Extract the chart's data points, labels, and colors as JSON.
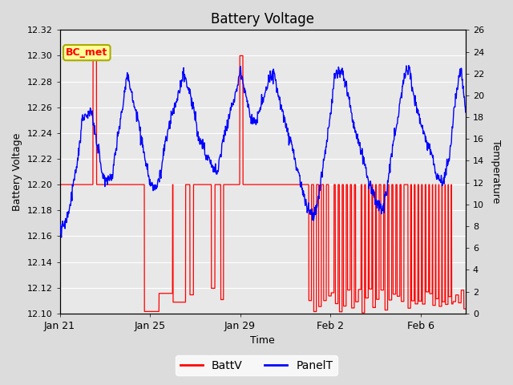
{
  "title": "Battery Voltage",
  "xlabel": "Time",
  "ylabel_left": "Battery Voltage",
  "ylabel_right": "Temperature",
  "ylim_left": [
    12.1,
    12.32
  ],
  "ylim_right": [
    0,
    26
  ],
  "yticks_left": [
    12.1,
    12.12,
    12.14,
    12.16,
    12.18,
    12.2,
    12.22,
    12.24,
    12.26,
    12.28,
    12.3,
    12.32
  ],
  "yticks_right": [
    0,
    2,
    4,
    6,
    8,
    10,
    12,
    14,
    16,
    18,
    20,
    22,
    24,
    26
  ],
  "xtick_labels": [
    "Jan 21",
    "Jan 25",
    "Jan 29",
    "Feb 2",
    "Feb 6"
  ],
  "xtick_pos": [
    0,
    4,
    8,
    12,
    16
  ],
  "total_days": 18.0,
  "bg_color": "#dcdcdc",
  "plot_bg_color": "#e8e8e8",
  "batt_color": "#ff0000",
  "panel_color": "#0000ff",
  "label_box_color": "#ffff99",
  "label_box_edge": "#aaaa00",
  "label_text": "BC_met",
  "legend_batt": "BattV",
  "legend_panel": "PanelT",
  "batt_base": 12.2,
  "batt_spike_high": 12.3,
  "batt_drop_low": 12.1,
  "temp_peak": 24.5,
  "temp_min": 7.5
}
